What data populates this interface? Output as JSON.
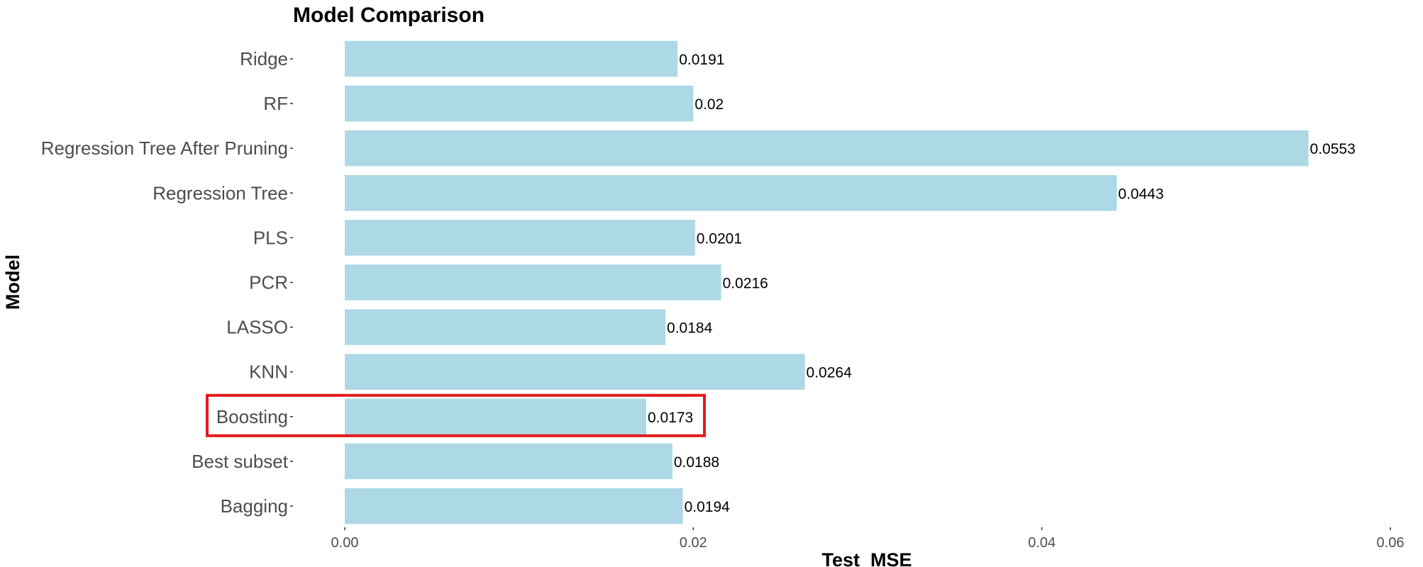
{
  "chart_data": {
    "type": "bar",
    "orientation": "horizontal",
    "title": "Model Comparison",
    "xlabel": "Test_MSE",
    "ylabel": "Model",
    "categories": [
      "Bagging",
      "Best subset",
      "Boosting",
      "KNN",
      "LASSO",
      "PCR",
      "PLS",
      "Regression Tree",
      "Regression Tree After Pruning",
      "RF",
      "Ridge"
    ],
    "values": [
      0.0194,
      0.0188,
      0.0173,
      0.0264,
      0.0184,
      0.0216,
      0.0201,
      0.0443,
      0.0553,
      0.02,
      0.0191
    ],
    "data_labels": [
      "0.0194",
      "0.0188",
      "0.0173",
      "0.0264",
      "0.0184",
      "0.0216",
      "0.0201",
      "0.0443",
      "0.0553",
      "0.02",
      "0.0191"
    ],
    "xlim": [
      0,
      0.06
    ],
    "x_ticks": [
      0,
      0.02,
      0.04,
      0.06
    ],
    "x_tick_labels": [
      "0.00",
      "0.02",
      "0.04",
      "0.06"
    ],
    "grid": false,
    "highlighted_category": "Boosting",
    "colors": {
      "bar": "#add8e6",
      "highlight": "#e31a1c",
      "axis_text": "#4d4d4d",
      "text": "#000000"
    }
  }
}
